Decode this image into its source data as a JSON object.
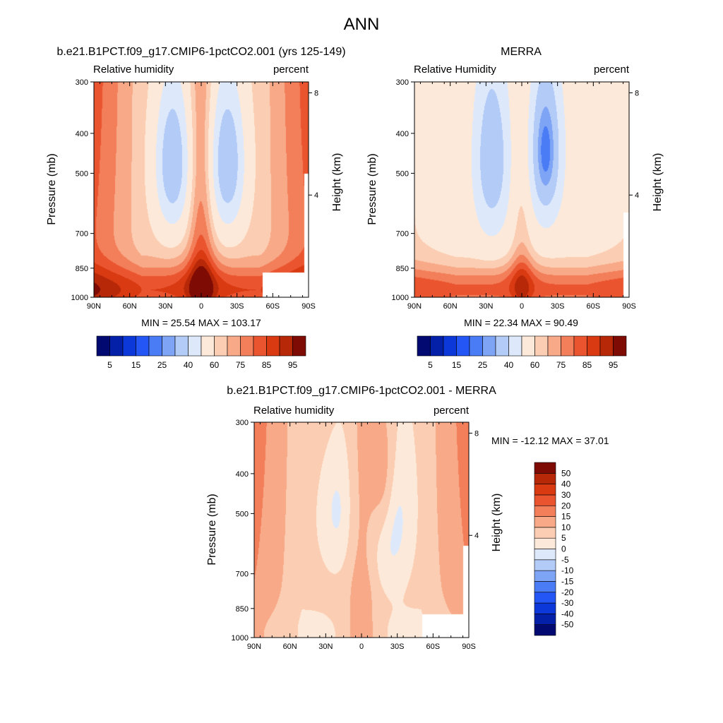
{
  "figure_title": "ANN",
  "colors": {
    "rh_palette": [
      "#020a72",
      "#0420a8",
      "#0c38d9",
      "#2356f5",
      "#4a7cf5",
      "#7ea4f5",
      "#b3cbf7",
      "#dde9fb",
      "#fde9d9",
      "#fbcdb2",
      "#f8a988",
      "#f37e5a",
      "#ea5530",
      "#d93a12",
      "#b72808",
      "#7e0b04"
    ],
    "diff_palette": [
      "#020a72",
      "#0420a8",
      "#0c38d9",
      "#2356f5",
      "#4a7cf5",
      "#7ea4f5",
      "#b3cbf7",
      "#dde9fb",
      "#fde9d9",
      "#fbcdb2",
      "#f8a988",
      "#f37e5a",
      "#ea5530",
      "#d93a12",
      "#b72808",
      "#7e0b04"
    ]
  },
  "chart_data": [
    {
      "type": "heatmap",
      "id": "model",
      "title": "b.e21.B1PCT.f09_g17.CMIP6-1pctCO2.001 (yrs 125-149)",
      "left_label": "Relative humidity",
      "right_label": "percent",
      "ylabel": "Pressure (mb)",
      "ylabel_right": "Height (km)",
      "x_ticks": [
        "90N",
        "60N",
        "30N",
        "0",
        "30S",
        "60S",
        "90S"
      ],
      "x_range": [
        90,
        -90
      ],
      "y_ticks": [
        300,
        400,
        500,
        700,
        850,
        1000
      ],
      "y_range": [
        1000,
        300
      ],
      "y_scale": "log",
      "right_ticks": [
        8,
        4
      ],
      "stats": "MIN =  25.54  MAX = 103.17",
      "contour_levels": [
        5,
        10,
        15,
        20,
        25,
        30,
        40,
        50,
        60,
        65,
        70,
        75,
        80,
        85,
        90,
        95
      ],
      "colorbar_labels": [
        "5",
        "15",
        "25",
        "40",
        "60",
        "75",
        "85",
        "95"
      ],
      "colorbar_orientation": "horizontal"
    },
    {
      "type": "heatmap",
      "id": "obs",
      "title": "MERRA",
      "left_label": "Relative Humidity",
      "right_label": "percent",
      "ylabel": "Pressure (mb)",
      "ylabel_right": "Height (km)",
      "x_ticks": [
        "90N",
        "60N",
        "30N",
        "0",
        "30S",
        "60S",
        "90S"
      ],
      "x_range": [
        90,
        -90
      ],
      "y_ticks": [
        300,
        400,
        500,
        700,
        850,
        1000
      ],
      "y_range": [
        1000,
        300
      ],
      "y_scale": "log",
      "right_ticks": [
        8,
        4
      ],
      "stats": "MIN =  22.34  MAX =  90.49",
      "contour_levels": [
        5,
        10,
        15,
        20,
        25,
        30,
        40,
        50,
        60,
        65,
        70,
        75,
        80,
        85,
        90,
        95
      ],
      "colorbar_labels": [
        "5",
        "15",
        "25",
        "40",
        "60",
        "75",
        "85",
        "95"
      ],
      "colorbar_orientation": "horizontal"
    },
    {
      "type": "heatmap",
      "id": "diff",
      "title": "b.e21.B1PCT.f09_g17.CMIP6-1pctCO2.001 - MERRA",
      "left_label": "Relative humidity",
      "right_label": "percent",
      "ylabel": "Pressure (mb)",
      "ylabel_right": "Height (km)",
      "x_ticks": [
        "90N",
        "60N",
        "30N",
        "0",
        "30S",
        "60S",
        "90S"
      ],
      "x_range": [
        90,
        -90
      ],
      "y_ticks": [
        300,
        400,
        500,
        700,
        850,
        1000
      ],
      "y_range": [
        1000,
        300
      ],
      "y_scale": "log",
      "right_ticks": [
        8,
        4
      ],
      "stats": "MIN = -12.12  MAX =  37.01",
      "contour_levels": [
        -50,
        -40,
        -30,
        -20,
        -15,
        -10,
        -5,
        0,
        5,
        10,
        15,
        20,
        30,
        40,
        50
      ],
      "colorbar_labels": [
        "50",
        "40",
        "30",
        "20",
        "15",
        "10",
        "5",
        "0",
        "-5",
        "-10",
        "-15",
        "-20",
        "-30",
        "-40",
        "-50"
      ],
      "colorbar_orientation": "vertical"
    }
  ]
}
